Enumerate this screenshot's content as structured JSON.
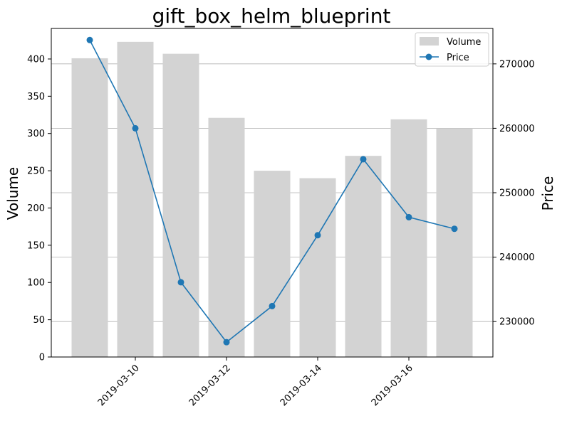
{
  "chart_data": {
    "type": "bar+line",
    "title": "gift_box_helm_blueprint",
    "xlabel": "",
    "ylabel_left": "Volume",
    "ylabel_right": "Price",
    "dates": [
      "2019-03-09",
      "2019-03-10",
      "2019-03-11",
      "2019-03-12",
      "2019-03-13",
      "2019-03-14",
      "2019-03-15",
      "2019-03-16",
      "2019-03-17"
    ],
    "x_tick_labels": [
      "2019-03-10",
      "2019-03-12",
      "2019-03-14",
      "2019-03-16"
    ],
    "series": [
      {
        "name": "Volume",
        "kind": "bar",
        "axis": "left",
        "color": "#d3d3d3",
        "values": [
          401,
          423,
          407,
          321,
          250,
          240,
          270,
          319,
          307
        ]
      },
      {
        "name": "Price",
        "kind": "line",
        "axis": "right",
        "color": "#1f77b4",
        "values": [
          273700,
          260000,
          236100,
          226800,
          232400,
          243400,
          255200,
          246200,
          244400
        ]
      }
    ],
    "y_left_ticks": [
      0,
      50,
      100,
      150,
      200,
      250,
      300,
      350,
      400
    ],
    "y_left_range": [
      0,
      441
    ],
    "y_right_ticks": [
      230000,
      240000,
      250000,
      260000,
      270000
    ],
    "y_right_range": [
      224500,
      275500
    ],
    "grid": "horizontal, right axis",
    "legend_position": "top-right"
  }
}
